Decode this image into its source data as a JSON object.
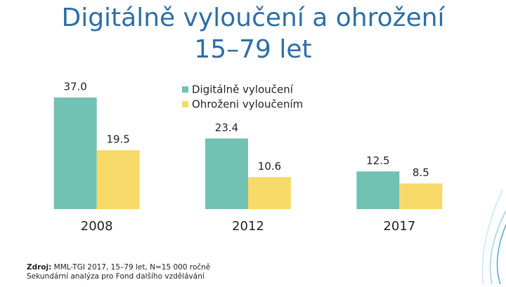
{
  "chart_data": {
    "type": "bar",
    "title": "Digitálně vyloučení a ohrožení",
    "subtitle": "15–79 let",
    "categories": [
      "2008",
      "2012",
      "2017"
    ],
    "series": [
      {
        "name": "Digitálně vyloučení",
        "color": "#72c2b4",
        "values": [
          37.0,
          23.4,
          12.5
        ],
        "value_labels": [
          "37.0",
          "23.4",
          "12.5"
        ]
      },
      {
        "name": "Ohroženi vyloučením",
        "color": "#f7d96a",
        "values": [
          19.5,
          10.6,
          8.5
        ],
        "value_labels": [
          "19.5",
          "10.6",
          "8.5"
        ]
      }
    ],
    "ylim": [
      0,
      40
    ],
    "source_label": "Zdroj:",
    "source": "MML-TGI 2017, 15–79 let, N=15 000 ročně",
    "note": "Sekundární analýza pro Fond dalšího vzdělávání"
  }
}
